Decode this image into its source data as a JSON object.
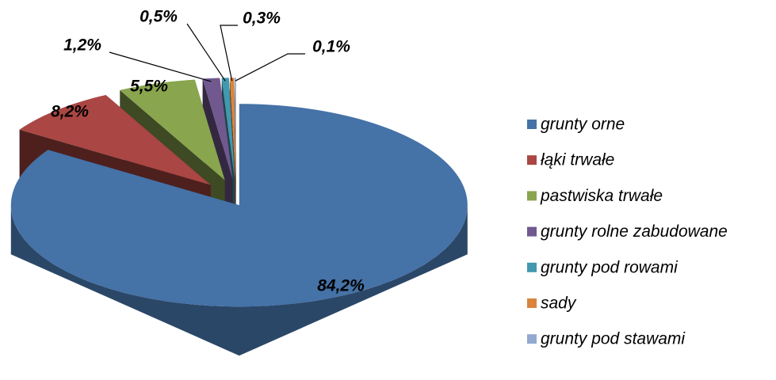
{
  "chart_data": {
    "type": "pie",
    "categories": [
      "grunty orne",
      "łąki trwałe",
      "pastwiska trwałe",
      "grunty rolne zabudowane",
      "grunty pod rowami",
      "sady",
      "grunty pod stawami"
    ],
    "values": [
      84.2,
      8.2,
      5.5,
      1.2,
      0.5,
      0.3,
      0.1
    ],
    "value_labels": [
      "84,2%",
      "8,2%",
      "5,5%",
      "1,2%",
      "0,5%",
      "0,3%",
      "0,1%"
    ],
    "colors": [
      "#4572a7",
      "#aa4643",
      "#89a54e",
      "#71588f",
      "#4198af",
      "#db843d",
      "#93a9cf"
    ],
    "legend": "right"
  }
}
